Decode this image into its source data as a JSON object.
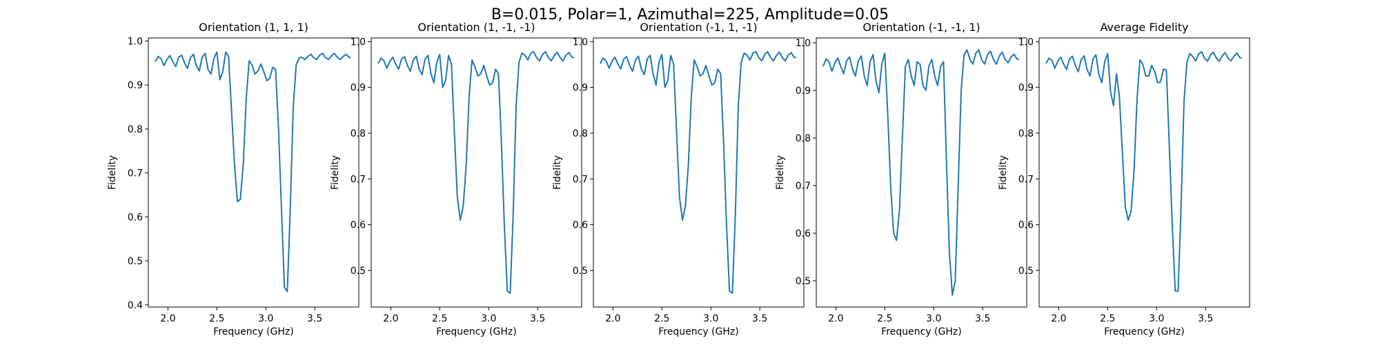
{
  "figure_title": "B=0.015, Polar=1, Azimuthal=225, Amplitude=0.05",
  "colors": {
    "line": "#1f77b4",
    "axes": "#000000",
    "background": "#ffffff"
  },
  "chart_data": [
    {
      "type": "line",
      "title": "Orientation (1, 1, 1)",
      "xlabel": "Frequency (GHz)",
      "ylabel": "Fidelity",
      "xlim": [
        1.8,
        3.95
      ],
      "ylim": [
        0.395,
        1.007
      ],
      "xticks": [
        "2.0",
        "2.5",
        "3.0",
        "3.5"
      ],
      "yticks": [
        "0.4",
        "0.5",
        "0.6",
        "0.7",
        "0.8",
        "0.9",
        "1.0"
      ],
      "grid": false,
      "series": [
        {
          "x": [
            1.87,
            1.9,
            1.93,
            1.96,
            1.99,
            2.02,
            2.05,
            2.08,
            2.11,
            2.14,
            2.17,
            2.2,
            2.23,
            2.26,
            2.29,
            2.32,
            2.35,
            2.38,
            2.41,
            2.44,
            2.47,
            2.5,
            2.53,
            2.56,
            2.59,
            2.62,
            2.65,
            2.68,
            2.71,
            2.74,
            2.77,
            2.8,
            2.83,
            2.86,
            2.89,
            2.92,
            2.95,
            2.98,
            3.01,
            3.04,
            3.07,
            3.1,
            3.13,
            3.16,
            3.19,
            3.22,
            3.25,
            3.28,
            3.31,
            3.34,
            3.37,
            3.4,
            3.43,
            3.46,
            3.49,
            3.52,
            3.55,
            3.58,
            3.61,
            3.64,
            3.67,
            3.7,
            3.73,
            3.76,
            3.79,
            3.82,
            3.85,
            3.87
          ],
          "y": [
            0.953,
            0.965,
            0.96,
            0.944,
            0.958,
            0.967,
            0.953,
            0.942,
            0.963,
            0.968,
            0.95,
            0.938,
            0.962,
            0.97,
            0.944,
            0.932,
            0.963,
            0.972,
            0.935,
            0.925,
            0.96,
            0.975,
            0.912,
            0.93,
            0.975,
            0.965,
            0.84,
            0.72,
            0.635,
            0.64,
            0.72,
            0.87,
            0.955,
            0.945,
            0.925,
            0.932,
            0.948,
            0.93,
            0.91,
            0.915,
            0.94,
            0.935,
            0.8,
            0.62,
            0.44,
            0.43,
            0.62,
            0.85,
            0.945,
            0.962,
            0.963,
            0.958,
            0.965,
            0.97,
            0.962,
            0.958,
            0.968,
            0.972,
            0.962,
            0.958,
            0.966,
            0.972,
            0.963,
            0.958,
            0.965,
            0.97,
            0.963,
            0.962
          ]
        }
      ]
    },
    {
      "type": "line",
      "title": "Orientation (1, -1, -1)",
      "xlabel": "Frequency (GHz)",
      "ylabel": "Fidelity",
      "xlim": [
        1.8,
        3.95
      ],
      "ylim": [
        0.42,
        1.008
      ],
      "xticks": [
        "2.0",
        "2.5",
        "3.0",
        "3.5"
      ],
      "yticks": [
        "0.5",
        "0.6",
        "0.7",
        "0.8",
        "0.9",
        "1.0"
      ],
      "grid": false,
      "series": [
        {
          "x": [
            1.87,
            1.9,
            1.93,
            1.96,
            1.99,
            2.02,
            2.05,
            2.08,
            2.11,
            2.14,
            2.17,
            2.2,
            2.23,
            2.26,
            2.29,
            2.32,
            2.35,
            2.38,
            2.41,
            2.44,
            2.47,
            2.5,
            2.53,
            2.56,
            2.59,
            2.62,
            2.65,
            2.68,
            2.71,
            2.74,
            2.77,
            2.8,
            2.83,
            2.86,
            2.89,
            2.92,
            2.95,
            2.98,
            3.01,
            3.04,
            3.07,
            3.1,
            3.13,
            3.16,
            3.19,
            3.22,
            3.25,
            3.28,
            3.31,
            3.34,
            3.37,
            3.4,
            3.43,
            3.46,
            3.49,
            3.52,
            3.55,
            3.58,
            3.61,
            3.64,
            3.67,
            3.7,
            3.73,
            3.76,
            3.79,
            3.82,
            3.85,
            3.87
          ],
          "y": [
            0.952,
            0.964,
            0.958,
            0.942,
            0.957,
            0.966,
            0.951,
            0.94,
            0.962,
            0.967,
            0.948,
            0.935,
            0.96,
            0.968,
            0.94,
            0.928,
            0.962,
            0.97,
            0.93,
            0.91,
            0.955,
            0.972,
            0.9,
            0.915,
            0.97,
            0.95,
            0.8,
            0.66,
            0.61,
            0.64,
            0.73,
            0.88,
            0.96,
            0.945,
            0.925,
            0.93,
            0.948,
            0.925,
            0.905,
            0.91,
            0.94,
            0.93,
            0.78,
            0.6,
            0.455,
            0.45,
            0.62,
            0.86,
            0.955,
            0.975,
            0.97,
            0.96,
            0.975,
            0.978,
            0.965,
            0.958,
            0.972,
            0.978,
            0.965,
            0.958,
            0.97,
            0.977,
            0.965,
            0.958,
            0.97,
            0.976,
            0.966,
            0.965
          ]
        }
      ]
    },
    {
      "type": "line",
      "title": "Orientation (-1, 1, -1)",
      "xlabel": "Frequency (GHz)",
      "ylabel": "Fidelity",
      "xlim": [
        1.8,
        3.95
      ],
      "ylim": [
        0.42,
        1.008
      ],
      "xticks": [
        "2.0",
        "2.5",
        "3.0",
        "3.5"
      ],
      "yticks": [
        "0.5",
        "0.6",
        "0.7",
        "0.8",
        "0.9",
        "1.0"
      ],
      "grid": false,
      "series": [
        {
          "x": [
            1.87,
            1.9,
            1.93,
            1.96,
            1.99,
            2.02,
            2.05,
            2.08,
            2.11,
            2.14,
            2.17,
            2.2,
            2.23,
            2.26,
            2.29,
            2.32,
            2.35,
            2.38,
            2.41,
            2.44,
            2.47,
            2.5,
            2.53,
            2.56,
            2.59,
            2.62,
            2.65,
            2.68,
            2.71,
            2.74,
            2.77,
            2.8,
            2.83,
            2.86,
            2.89,
            2.92,
            2.95,
            2.98,
            3.01,
            3.04,
            3.07,
            3.1,
            3.13,
            3.16,
            3.19,
            3.22,
            3.25,
            3.28,
            3.31,
            3.34,
            3.37,
            3.4,
            3.43,
            3.46,
            3.49,
            3.52,
            3.55,
            3.58,
            3.61,
            3.64,
            3.67,
            3.7,
            3.73,
            3.76,
            3.79,
            3.82,
            3.85,
            3.87
          ],
          "y": [
            0.952,
            0.964,
            0.958,
            0.942,
            0.957,
            0.966,
            0.951,
            0.94,
            0.962,
            0.967,
            0.948,
            0.935,
            0.96,
            0.968,
            0.94,
            0.928,
            0.962,
            0.97,
            0.93,
            0.905,
            0.955,
            0.972,
            0.9,
            0.915,
            0.97,
            0.95,
            0.8,
            0.66,
            0.61,
            0.64,
            0.73,
            0.88,
            0.96,
            0.945,
            0.925,
            0.93,
            0.948,
            0.925,
            0.905,
            0.91,
            0.94,
            0.93,
            0.78,
            0.6,
            0.455,
            0.45,
            0.62,
            0.86,
            0.955,
            0.975,
            0.97,
            0.96,
            0.975,
            0.978,
            0.965,
            0.958,
            0.972,
            0.978,
            0.965,
            0.958,
            0.97,
            0.977,
            0.965,
            0.958,
            0.97,
            0.976,
            0.966,
            0.965
          ]
        }
      ]
    },
    {
      "type": "line",
      "title": "Orientation (-1, -1, 1)",
      "xlabel": "Frequency (GHz)",
      "ylabel": "Fidelity",
      "xlim": [
        1.8,
        3.95
      ],
      "ylim": [
        0.445,
        1.01
      ],
      "xticks": [
        "2.0",
        "2.5",
        "3.0",
        "3.5"
      ],
      "yticks": [
        "0.5",
        "0.6",
        "0.7",
        "0.8",
        "0.9",
        "1.0"
      ],
      "grid": false,
      "series": [
        {
          "x": [
            1.87,
            1.9,
            1.93,
            1.96,
            1.99,
            2.02,
            2.05,
            2.08,
            2.11,
            2.14,
            2.17,
            2.2,
            2.23,
            2.26,
            2.29,
            2.32,
            2.35,
            2.38,
            2.41,
            2.44,
            2.47,
            2.5,
            2.53,
            2.56,
            2.59,
            2.62,
            2.65,
            2.68,
            2.71,
            2.74,
            2.77,
            2.8,
            2.83,
            2.86,
            2.89,
            2.92,
            2.95,
            2.98,
            3.01,
            3.04,
            3.07,
            3.1,
            3.13,
            3.16,
            3.19,
            3.22,
            3.25,
            3.28,
            3.31,
            3.34,
            3.37,
            3.4,
            3.43,
            3.46,
            3.49,
            3.52,
            3.55,
            3.58,
            3.61,
            3.64,
            3.67,
            3.7,
            3.73,
            3.76,
            3.79,
            3.82,
            3.85,
            3.87
          ],
          "y": [
            0.95,
            0.966,
            0.96,
            0.94,
            0.958,
            0.968,
            0.95,
            0.935,
            0.962,
            0.97,
            0.945,
            0.93,
            0.962,
            0.972,
            0.93,
            0.91,
            0.96,
            0.975,
            0.92,
            0.895,
            0.955,
            0.978,
            0.85,
            0.7,
            0.6,
            0.585,
            0.65,
            0.8,
            0.95,
            0.965,
            0.93,
            0.91,
            0.96,
            0.955,
            0.91,
            0.9,
            0.95,
            0.965,
            0.93,
            0.91,
            0.95,
            0.96,
            0.75,
            0.56,
            0.47,
            0.5,
            0.7,
            0.9,
            0.975,
            0.985,
            0.965,
            0.955,
            0.978,
            0.985,
            0.965,
            0.955,
            0.975,
            0.982,
            0.965,
            0.955,
            0.972,
            0.98,
            0.965,
            0.958,
            0.97,
            0.976,
            0.966,
            0.965
          ]
        }
      ]
    },
    {
      "type": "line",
      "title": "Average Fidelity",
      "xlabel": "Frequency (GHz)",
      "ylabel": "Fidelity",
      "xlim": [
        1.8,
        3.95
      ],
      "ylim": [
        0.42,
        1.008
      ],
      "xticks": [
        "2.0",
        "2.5",
        "3.0",
        "3.5"
      ],
      "yticks": [
        "0.5",
        "0.6",
        "0.7",
        "0.8",
        "0.9",
        "1.0"
      ],
      "grid": false,
      "series": [
        {
          "x": [
            1.87,
            1.9,
            1.93,
            1.96,
            1.99,
            2.02,
            2.05,
            2.08,
            2.11,
            2.14,
            2.17,
            2.2,
            2.23,
            2.26,
            2.29,
            2.32,
            2.35,
            2.38,
            2.41,
            2.44,
            2.47,
            2.5,
            2.53,
            2.56,
            2.59,
            2.62,
            2.65,
            2.68,
            2.71,
            2.74,
            2.77,
            2.8,
            2.83,
            2.86,
            2.89,
            2.92,
            2.95,
            2.98,
            3.01,
            3.04,
            3.07,
            3.1,
            3.13,
            3.16,
            3.19,
            3.22,
            3.25,
            3.28,
            3.31,
            3.34,
            3.37,
            3.4,
            3.43,
            3.46,
            3.49,
            3.52,
            3.55,
            3.58,
            3.61,
            3.64,
            3.67,
            3.7,
            3.73,
            3.76,
            3.79,
            3.82,
            3.85,
            3.87
          ],
          "y": [
            0.952,
            0.964,
            0.959,
            0.942,
            0.957,
            0.966,
            0.951,
            0.939,
            0.962,
            0.968,
            0.948,
            0.934,
            0.961,
            0.969,
            0.939,
            0.925,
            0.962,
            0.971,
            0.929,
            0.91,
            0.956,
            0.974,
            0.89,
            0.86,
            0.93,
            0.88,
            0.76,
            0.64,
            0.61,
            0.63,
            0.72,
            0.875,
            0.96,
            0.95,
            0.925,
            0.925,
            0.948,
            0.935,
            0.91,
            0.912,
            0.94,
            0.938,
            0.77,
            0.6,
            0.455,
            0.455,
            0.64,
            0.87,
            0.955,
            0.974,
            0.967,
            0.958,
            0.973,
            0.978,
            0.964,
            0.957,
            0.971,
            0.977,
            0.964,
            0.957,
            0.969,
            0.976,
            0.964,
            0.958,
            0.968,
            0.975,
            0.965,
            0.964
          ]
        }
      ]
    }
  ]
}
